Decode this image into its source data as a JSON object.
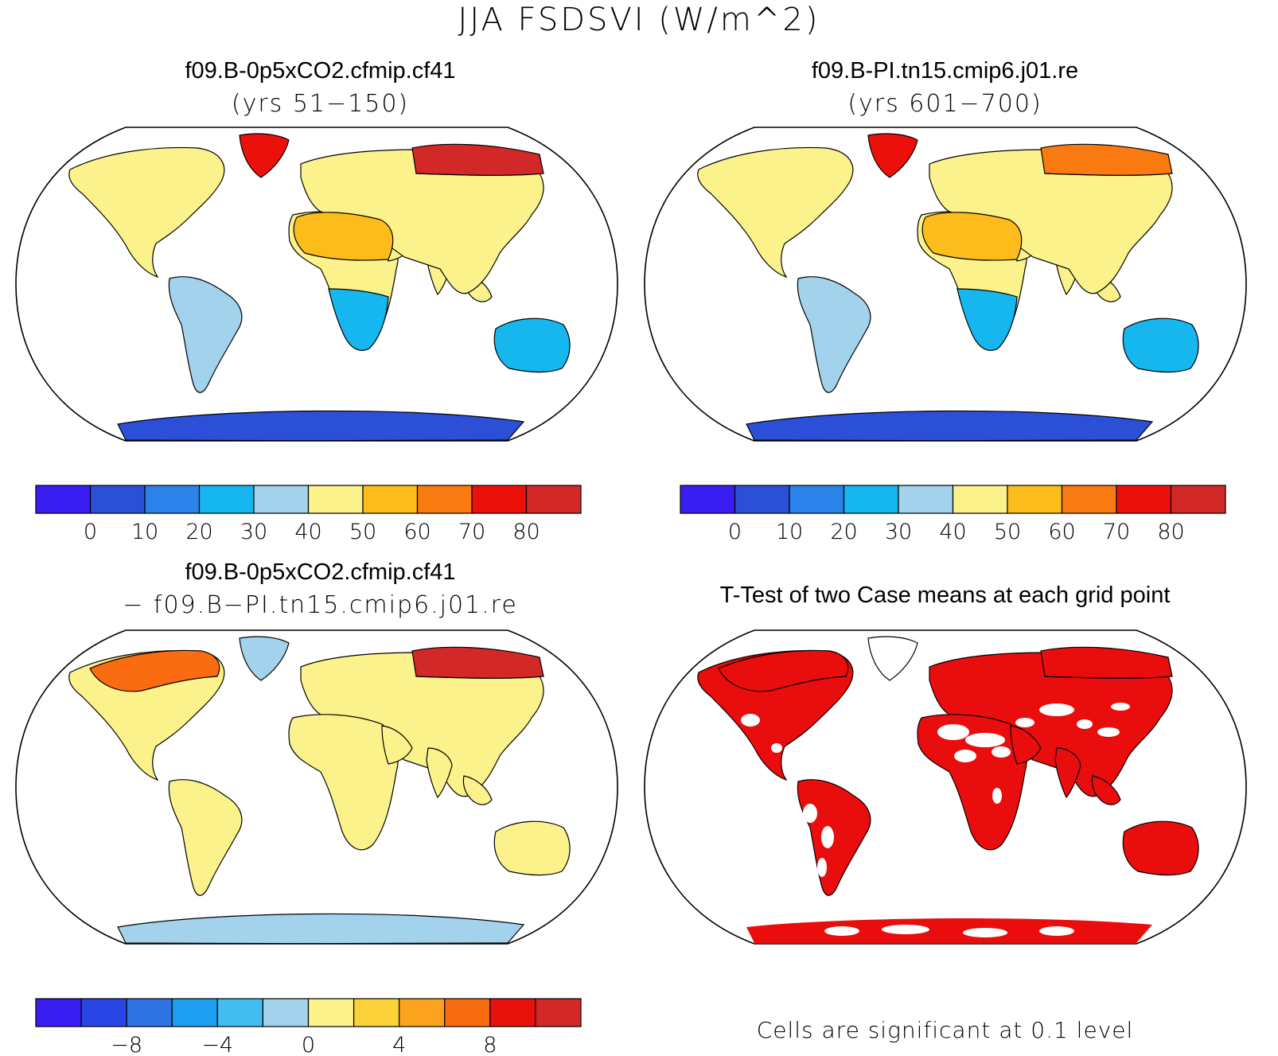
{
  "title": "JJA FSDSVI (W/m^2)",
  "colors": {
    "abs_scale": [
      "#3a1df0",
      "#2c4fd8",
      "#2a82ea",
      "#16b6ee",
      "#a2d2ec",
      "#fbf28c",
      "#fbbc1c",
      "#f97a10",
      "#ec100c",
      "#d22828"
    ],
    "diff_scale": [
      "#3a1df0",
      "#2a45e6",
      "#2f74e4",
      "#1d9ef0",
      "#43bcef",
      "#a2d2ec",
      "#fbf28c",
      "#fbd23a",
      "#fba31d",
      "#f96c11",
      "#e8120d",
      "#d22828"
    ],
    "signif": "#ea0d0d",
    "land_base": "#fbf28c"
  },
  "panels": [
    {
      "id": "case",
      "title": "f09.B-0p5xCO2.cfmip.cf41",
      "subtitle": "(yrs 51−150)"
    },
    {
      "id": "control",
      "title": "f09.B-PI.tn15.cmip6.j01.re",
      "subtitle": "(yrs 601−700)"
    },
    {
      "id": "difference",
      "title": "f09.B-0p5xCO2.cfmip.cf41",
      "subtitle": "− f09.B−PI.tn15.cmip6.j01.re"
    },
    {
      "id": "ttest",
      "title": "T-Test of two Case means at each grid point",
      "subtitle": ""
    }
  ],
  "chart_data": [
    {
      "type": "heatmap",
      "map_projection": "robinson",
      "title": "f09.B-0p5xCO2.cfmip.cf41",
      "subtitle": "(yrs 51−150)",
      "colorbar": {
        "boundaries": [
          0,
          10,
          20,
          30,
          40,
          50,
          60,
          70,
          80
        ],
        "labels": [
          "0",
          "10",
          "20",
          "30",
          "40",
          "50",
          "60",
          "70",
          "80"
        ],
        "n_colors": 10
      },
      "regions": [
        {
          "region": "Antarctica",
          "value": 5
        },
        {
          "region": "Australia",
          "value": 25
        },
        {
          "region": "Southern Africa",
          "value": 25
        },
        {
          "region": "South America",
          "value": 30
        },
        {
          "region": "Sahara",
          "value": 55
        },
        {
          "region": "Eurasia",
          "value": 45
        },
        {
          "region": "North America",
          "value": 45
        },
        {
          "region": "Greenland",
          "value": 75
        },
        {
          "region": "Northern Siberia",
          "value": 85
        }
      ]
    },
    {
      "type": "heatmap",
      "map_projection": "robinson",
      "title": "f09.B-PI.tn15.cmip6.j01.re",
      "subtitle": "(yrs 601−700)",
      "colorbar": {
        "boundaries": [
          0,
          10,
          20,
          30,
          40,
          50,
          60,
          70,
          80
        ],
        "labels": [
          "0",
          "10",
          "20",
          "30",
          "40",
          "50",
          "60",
          "70",
          "80"
        ],
        "n_colors": 10
      },
      "regions": [
        {
          "region": "Antarctica",
          "value": 5
        },
        {
          "region": "Australia",
          "value": 25
        },
        {
          "region": "Southern Africa",
          "value": 25
        },
        {
          "region": "South America",
          "value": 30
        },
        {
          "region": "Sahara",
          "value": 55
        },
        {
          "region": "Eurasia",
          "value": 45
        },
        {
          "region": "North America",
          "value": 45
        },
        {
          "region": "Greenland",
          "value": 75
        },
        {
          "region": "Northern Siberia",
          "value": 65
        }
      ]
    },
    {
      "type": "heatmap",
      "map_projection": "robinson",
      "title": "f09.B-0p5xCO2.cfmip.cf41",
      "subtitle": "− f09.B−PI.tn15.cmip6.j01.re",
      "colorbar": {
        "boundaries": [
          -10,
          -8,
          -6,
          -4,
          -2,
          0,
          2,
          4,
          6,
          8,
          10
        ],
        "labels": [
          "−8",
          "−4",
          "0",
          "4",
          "8"
        ],
        "label_values": [
          -8,
          -4,
          0,
          4,
          8
        ],
        "n_colors": 12
      },
      "regions": [
        {
          "region": "Antarctica",
          "value": -1
        },
        {
          "region": "Australia",
          "value": 1
        },
        {
          "region": "Africa",
          "value": 1
        },
        {
          "region": "South America",
          "value": 1
        },
        {
          "region": "Eurasia",
          "value": 1
        },
        {
          "region": "North America",
          "value": 1
        },
        {
          "region": "Canadian Arctic",
          "value": 7
        },
        {
          "region": "Greenland",
          "value": -1
        },
        {
          "region": "Northern Siberia",
          "value": 11
        }
      ]
    },
    {
      "type": "heatmap",
      "map_projection": "robinson",
      "title": "T-Test of two Case means at each grid point",
      "note": "Cells are significant at 0.1 level",
      "significance_level": 0.1
    }
  ]
}
